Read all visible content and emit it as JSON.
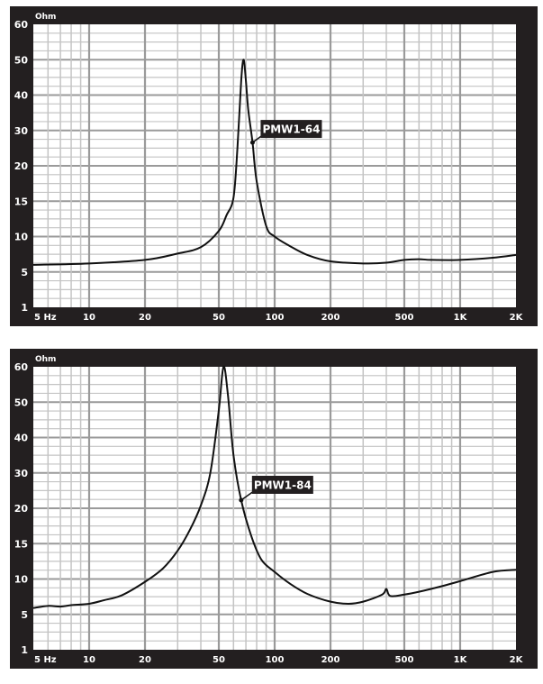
{
  "chart_data": [
    {
      "type": "line",
      "ylabel": "Ohm",
      "xscale": "log",
      "yscale": "custom (evenly spaced ticks)",
      "xlim": [
        5,
        2000
      ],
      "ylim": [
        1,
        60
      ],
      "grid": true,
      "x_ticks": [
        5,
        10,
        20,
        50,
        100,
        200,
        500,
        1000,
        2000
      ],
      "x_tick_labels": [
        "5 Hz",
        "10",
        "20",
        "50",
        "100",
        "200",
        "500",
        "1K",
        "2K"
      ],
      "y_ticks": [
        1,
        5,
        10,
        15,
        20,
        30,
        40,
        50,
        60
      ],
      "y_tick_labels": [
        "1",
        "5",
        "10",
        "15",
        "20",
        "30",
        "40",
        "50",
        "60"
      ],
      "series": [
        {
          "name": "PMW1-64",
          "x": [
            5,
            10,
            20,
            30,
            40,
            50,
            55,
            60,
            63,
            66,
            68,
            70,
            72,
            76,
            80,
            90,
            100,
            120,
            150,
            200,
            300,
            400,
            500,
            600,
            700,
            1000,
            1500,
            2000
          ],
          "y": [
            6.0,
            6.2,
            6.7,
            7.6,
            8.5,
            10.8,
            13,
            15.5,
            25,
            44,
            50,
            44,
            36,
            26.6,
            17.8,
            11.5,
            10,
            8.7,
            7.4,
            6.5,
            6.2,
            6.3,
            6.7,
            6.8,
            6.7,
            6.7,
            7.0,
            7.4
          ],
          "label_at": [
            76,
            26.6
          ]
        }
      ],
      "annotation": "PMW1-64"
    },
    {
      "type": "line",
      "ylabel": "Ohm",
      "xscale": "log",
      "yscale": "custom (evenly spaced ticks)",
      "xlim": [
        5,
        2000
      ],
      "ylim": [
        1,
        60
      ],
      "grid": true,
      "x_ticks": [
        5,
        10,
        20,
        50,
        100,
        200,
        500,
        1000,
        2000
      ],
      "x_tick_labels": [
        "5 Hz",
        "10",
        "20",
        "50",
        "100",
        "200",
        "500",
        "1K",
        "2K"
      ],
      "y_ticks": [
        1,
        5,
        10,
        15,
        20,
        30,
        40,
        50,
        60
      ],
      "y_tick_labels": [
        "1",
        "5",
        "10",
        "15",
        "20",
        "30",
        "40",
        "50",
        "60"
      ],
      "series": [
        {
          "name": "PMW1-84",
          "x": [
            5,
            6,
            7,
            8,
            10,
            12,
            15,
            20,
            25,
            30,
            35,
            40,
            45,
            50,
            53,
            56,
            60,
            66,
            75,
            85,
            100,
            120,
            150,
            200,
            250,
            300,
            380,
            400,
            420,
            500,
            600,
            800,
            1000,
            1500,
            2000
          ],
          "y": [
            5.9,
            6.2,
            6.1,
            6.3,
            6.5,
            7.0,
            7.7,
            9.6,
            11.5,
            14,
            17,
            20.8,
            30,
            47.7,
            60,
            52,
            35,
            22.3,
            16,
            12.7,
            11,
            9.4,
            7.9,
            6.8,
            6.5,
            6.8,
            7.8,
            8.6,
            7.6,
            7.8,
            8.2,
            9.0,
            9.7,
            11,
            11.3
          ],
          "label_at": [
            66,
            22.3
          ]
        }
      ],
      "annotation": "PMW1-84"
    }
  ],
  "colors": {
    "frame": "#231f20",
    "grid_major": "#9a9a9a",
    "grid_minor": "#c4c4c4",
    "curve": "#111111",
    "label_bg": "#231f20",
    "label_text": "#ffffff"
  }
}
